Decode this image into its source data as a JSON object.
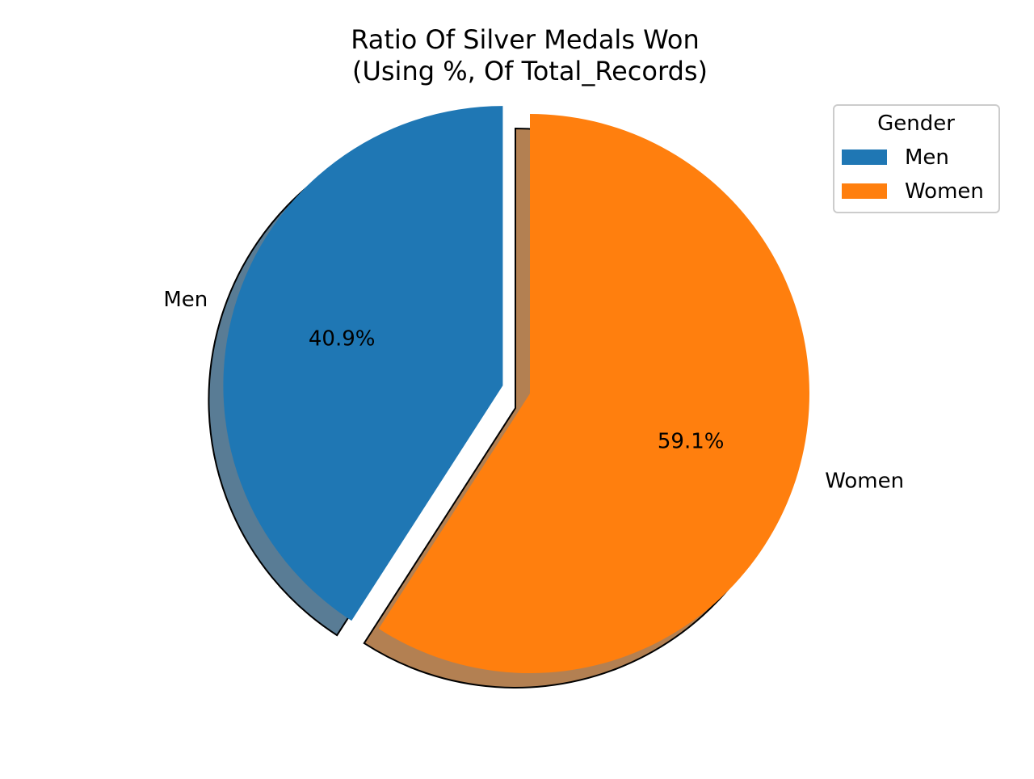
{
  "chart_data": {
    "type": "pie",
    "title": "Ratio Of Silver Medals Won\n(Using %, Of Total_Records)",
    "title_lines": [
      "Ratio Of Silver Medals Won",
      "(Using %, Of Total_Records)"
    ],
    "slices": [
      {
        "label": "Men",
        "value": 40.9,
        "display": "40.9%",
        "color": "#1f77b4",
        "exploded": true
      },
      {
        "label": "Women",
        "value": 59.1,
        "display": "59.1%",
        "color": "#ff7f0e",
        "exploded": false
      }
    ],
    "start_angle_deg": 90,
    "direction": "counterclockwise",
    "shadow": true,
    "legend": {
      "title": "Gender",
      "position": "upper-right",
      "entries": [
        "Men",
        "Women"
      ]
    }
  }
}
